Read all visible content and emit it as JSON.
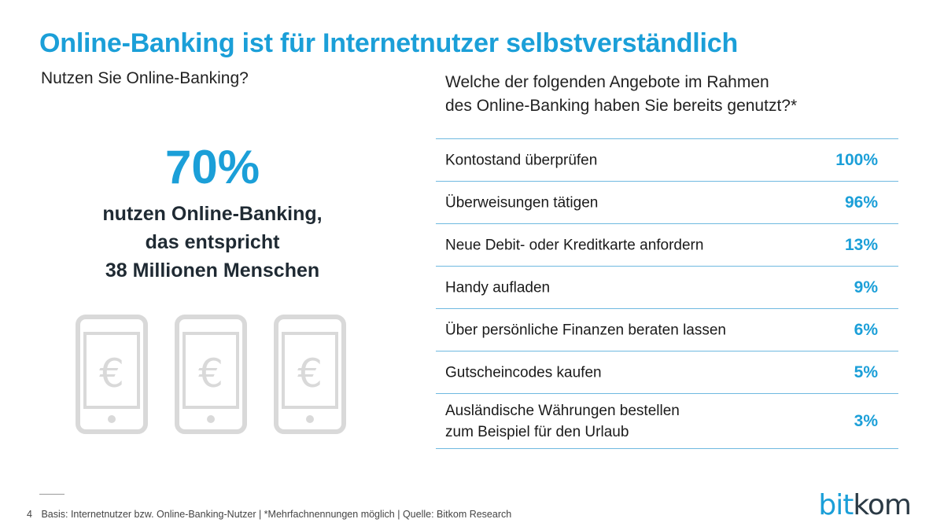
{
  "title": "Online-Banking ist für Internetnutzer selbstverständlich",
  "left": {
    "question": "Nutzen Sie Online-Banking?",
    "percent": "70%",
    "lines": [
      "nutzen Online-Banking,",
      "das entspricht",
      "38 Millionen Menschen"
    ],
    "phone_symbol": "€"
  },
  "right": {
    "question_lines": [
      "Welche der folgenden Angebote im Rahmen",
      "des Online-Banking haben Sie bereits genutzt?*"
    ]
  },
  "chart_data": {
    "type": "table",
    "rows": [
      {
        "label": [
          "Kontostand überprüfen"
        ],
        "value": 100,
        "display": "100%"
      },
      {
        "label": [
          "Überweisungen tätigen"
        ],
        "value": 96,
        "display": "96%"
      },
      {
        "label": [
          "Neue Debit- oder Kreditkarte anfordern"
        ],
        "value": 13,
        "display": "13%"
      },
      {
        "label": [
          "Handy aufladen"
        ],
        "value": 9,
        "display": "9%"
      },
      {
        "label": [
          "Über persönliche Finanzen beraten lassen"
        ],
        "value": 6,
        "display": "6%"
      },
      {
        "label": [
          "Gutscheincodes kaufen"
        ],
        "value": 5,
        "display": "5%"
      },
      {
        "label": [
          "Ausländische Währungen bestellen",
          "zum Beispiel für den Urlaub"
        ],
        "value": 3,
        "display": "3%"
      }
    ]
  },
  "footer": {
    "page_number": "4",
    "text": "Basis: Internetnutzer bzw. Online-Banking-Nutzer | *Mehrfachnennungen möglich | Quelle: Bitkom Research"
  },
  "logo": {
    "part1": "bit",
    "part2": "kom"
  },
  "colors": {
    "accent": "#1b9fd8",
    "dark": "#1f2a33",
    "phone_gray": "#d9d9d9",
    "rule": "#6fb9e0"
  }
}
